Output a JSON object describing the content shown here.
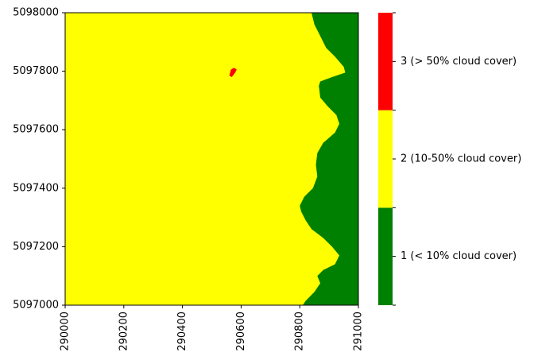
{
  "chart_data": {
    "type": "heatmap",
    "title": "",
    "xlabel": "",
    "ylabel": "",
    "xlim": [
      290000,
      291000
    ],
    "ylim": [
      5097000,
      5098000
    ],
    "x_ticks": [
      "290000",
      "290200",
      "290400",
      "290600",
      "290800",
      "291000"
    ],
    "x_tick_values": [
      290000,
      290200,
      290400,
      290600,
      290800,
      291000
    ],
    "y_ticks": [
      "5097000",
      "5097200",
      "5097400",
      "5097600",
      "5097800",
      "5098000"
    ],
    "y_tick_values": [
      5097000,
      5097200,
      5097400,
      5097600,
      5097800,
      5098000
    ],
    "x_tick_rotation": "vertical",
    "classes": [
      {
        "value": 1,
        "label": "1 (< 10% cloud cover)",
        "color": "#008000"
      },
      {
        "value": 2,
        "label": "2 (10-50% cloud cover)",
        "color": "#ffff00"
      },
      {
        "value": 3,
        "label": "3 (> 50% cloud cover)",
        "color": "#ff0000"
      }
    ],
    "background_class": 2,
    "class_boundary_1_2": [
      {
        "y": 5098000,
        "x": 290840
      },
      {
        "y": 5097960,
        "x": 290850
      },
      {
        "y": 5097920,
        "x": 290870
      },
      {
        "y": 5097880,
        "x": 290890
      },
      {
        "y": 5097850,
        "x": 290920
      },
      {
        "y": 5097815,
        "x": 290950
      },
      {
        "y": 5097795,
        "x": 290955
      },
      {
        "y": 5097780,
        "x": 290910
      },
      {
        "y": 5097765,
        "x": 290870
      },
      {
        "y": 5097750,
        "x": 290865
      },
      {
        "y": 5097710,
        "x": 290870
      },
      {
        "y": 5097680,
        "x": 290895
      },
      {
        "y": 5097650,
        "x": 290925
      },
      {
        "y": 5097620,
        "x": 290935
      },
      {
        "y": 5097590,
        "x": 290920
      },
      {
        "y": 5097555,
        "x": 290880
      },
      {
        "y": 5097520,
        "x": 290860
      },
      {
        "y": 5097480,
        "x": 290855
      },
      {
        "y": 5097440,
        "x": 290860
      },
      {
        "y": 5097400,
        "x": 290845
      },
      {
        "y": 5097370,
        "x": 290815
      },
      {
        "y": 5097340,
        "x": 290800
      },
      {
        "y": 5097320,
        "x": 290805
      },
      {
        "y": 5097290,
        "x": 290820
      },
      {
        "y": 5097260,
        "x": 290840
      },
      {
        "y": 5097230,
        "x": 290880
      },
      {
        "y": 5097200,
        "x": 290910
      },
      {
        "y": 5097170,
        "x": 290935
      },
      {
        "y": 5097140,
        "x": 290920
      },
      {
        "y": 5097120,
        "x": 290880
      },
      {
        "y": 5097100,
        "x": 290860
      },
      {
        "y": 5097075,
        "x": 290870
      },
      {
        "y": 5097045,
        "x": 290850
      },
      {
        "y": 5097015,
        "x": 290820
      },
      {
        "y": 5097000,
        "x": 290810
      }
    ],
    "class3_region": [
      {
        "x": 290560,
        "y": 5097785
      },
      {
        "x": 290565,
        "y": 5097805
      },
      {
        "x": 290575,
        "y": 5097812
      },
      {
        "x": 290585,
        "y": 5097806
      },
      {
        "x": 290580,
        "y": 5097795
      },
      {
        "x": 290568,
        "y": 5097780
      }
    ]
  }
}
